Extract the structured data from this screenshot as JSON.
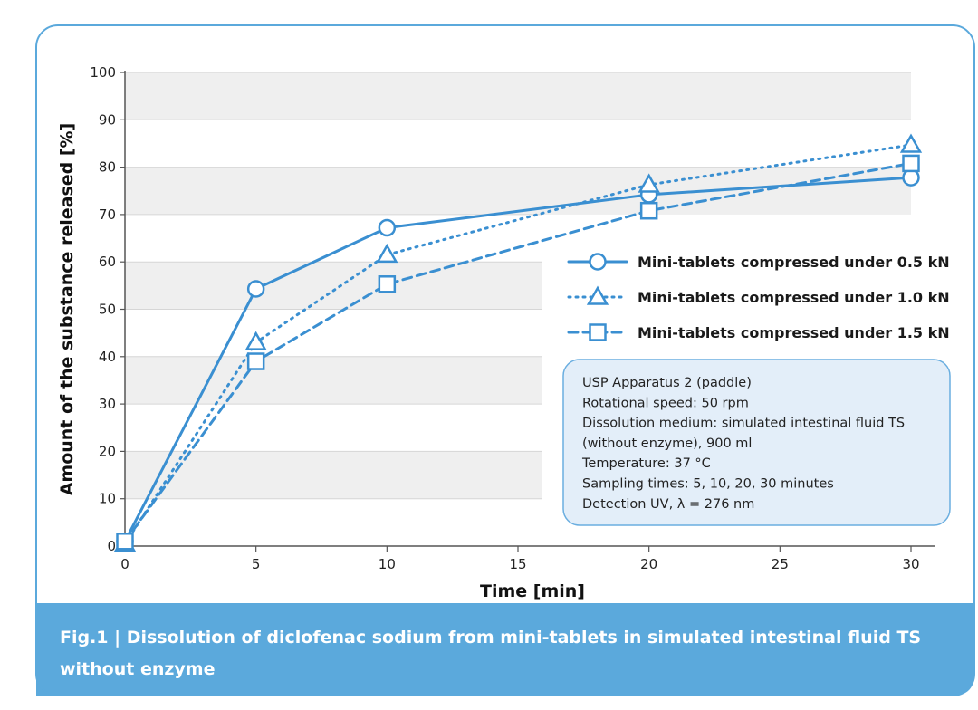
{
  "chart_data": {
    "type": "line",
    "xlabel": "Time [min]",
    "ylabel": "Amount of the substance released [%]",
    "xlim": [
      0,
      31
    ],
    "ylim": [
      0,
      100
    ],
    "xticks": [
      0,
      5,
      10,
      15,
      20,
      25,
      30
    ],
    "yticks": [
      0,
      10,
      20,
      30,
      40,
      50,
      60,
      70,
      80,
      90,
      100
    ],
    "legend_position": "right",
    "series": [
      {
        "name": "Mini-tablets compressed under 0.5 kN",
        "marker": "circle",
        "line_style": "solid",
        "x": [
          0,
          5,
          10,
          20,
          30
        ],
        "y": [
          1,
          54.3,
          67.2,
          74.2,
          77.8
        ]
      },
      {
        "name": "Mini-tablets compressed under 1.0 kN",
        "marker": "triangle",
        "line_style": "dotted",
        "x": [
          0,
          5,
          10,
          20,
          30
        ],
        "y": [
          0.5,
          43,
          61.5,
          76.3,
          84.7
        ]
      },
      {
        "name": "Mini-tablets compressed under 1.5 kN",
        "marker": "square",
        "line_style": "dashed",
        "x": [
          0,
          5,
          10,
          20,
          30
        ],
        "y": [
          1,
          39,
          55.3,
          70.8,
          80.8
        ]
      }
    ],
    "conditions": [
      "USP Apparatus 2 (paddle)",
      "Rotational speed: 50 rpm",
      "Dissolution medium: simulated intestinal fluid TS",
      "(without enzyme), 900 ml",
      "Temperature: 37 °C",
      "Sampling times: 5, 10, 20, 30 minutes",
      "Detection UV, λ = 276 nm"
    ]
  },
  "caption": {
    "line1": "Fig.1 | Dissolution of diclofenac sodium from mini-tablets in simulated intestinal fluid TS",
    "line2": "without enzyme"
  },
  "colors": {
    "series": "#3a8fd1",
    "caption_bg": "#5ba9dc",
    "frame_border": "#5ba9dc",
    "band": "#efefef",
    "conditions_bg": "#e3eef9",
    "conditions_border": "#6aaee0"
  }
}
